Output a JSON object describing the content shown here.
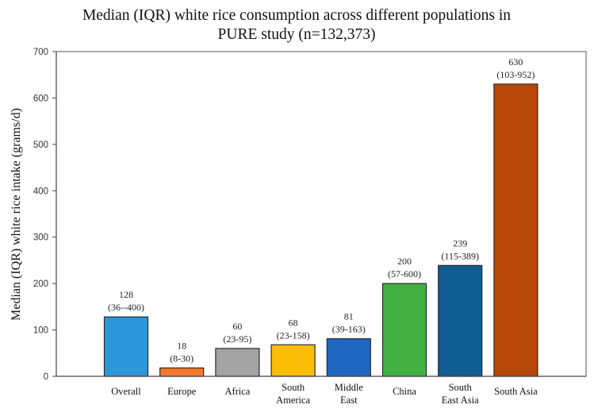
{
  "chart_data": {
    "type": "bar",
    "title": [
      "Median (IQR) white rice consumption across different populations in",
      "PURE study (n=132,373)"
    ],
    "xlabel": "",
    "ylabel": "Median (IQR) white rice intake  (grams/d)",
    "ylim": [
      0,
      700
    ],
    "yticks": [
      0,
      100,
      200,
      300,
      400,
      500,
      600,
      700
    ],
    "grid": false,
    "legend": "none",
    "categories": [
      [
        "Overall"
      ],
      [
        "Europe"
      ],
      [
        "Africa"
      ],
      [
        "South",
        "America"
      ],
      [
        "Middle",
        "East"
      ],
      [
        "China"
      ],
      [
        "South",
        "East Asia"
      ],
      [
        "South Asia"
      ]
    ],
    "values": [
      128,
      18,
      60,
      68,
      81,
      200,
      239,
      630
    ],
    "iqr_labels": [
      "(36--400)",
      "(8-30)",
      "(23-95)",
      "(23-158)",
      "(39-163)",
      "(57-600)",
      "(115-389)",
      "(103-952)"
    ],
    "colors": [
      "#2d97db",
      "#f47a2e",
      "#a3a3a3",
      "#fbbd08",
      "#2067c4",
      "#42b043",
      "#0f5d93",
      "#b8470a"
    ]
  }
}
